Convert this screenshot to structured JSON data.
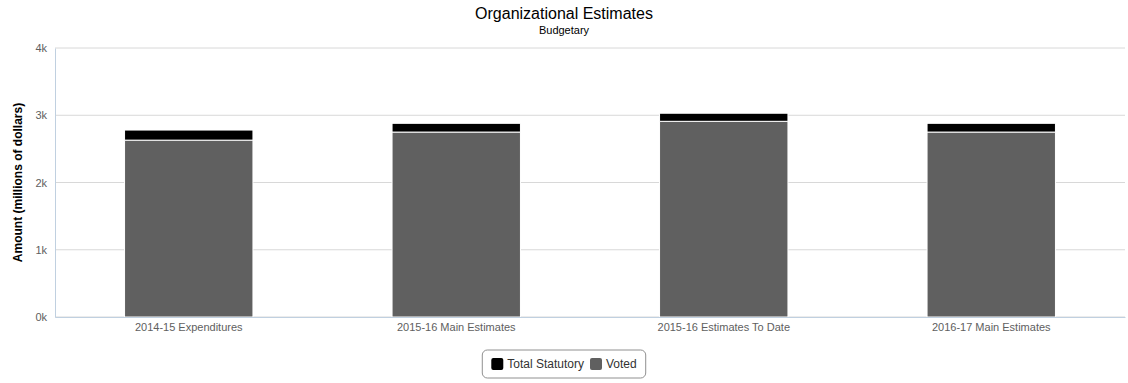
{
  "chart_data": {
    "type": "bar",
    "title": "Organizational Estimates",
    "subtitle": "Budgetary",
    "y_label": "Amount (millions of dollars)",
    "categories": [
      "2014-15 Expenditures",
      "2015-16 Main Estimates",
      "2015-16 Estimates To Date",
      "2016-17 Main Estimates"
    ],
    "series": [
      {
        "name": "Total Statutory",
        "color": "#000000",
        "values": [
          150,
          130,
          120,
          130
        ]
      },
      {
        "name": "Voted",
        "color": "#606060",
        "values": [
          2630,
          2750,
          2910,
          2750
        ]
      }
    ],
    "stacked": true,
    "ylim": [
      0,
      4000
    ],
    "yticks": [
      {
        "value": 0,
        "label": "0k"
      },
      {
        "value": 1000,
        "label": "1k"
      },
      {
        "value": 2000,
        "label": "2k"
      },
      {
        "value": 3000,
        "label": "3k"
      },
      {
        "value": 4000,
        "label": "4k"
      }
    ],
    "grid": true,
    "legend": "bottom"
  }
}
